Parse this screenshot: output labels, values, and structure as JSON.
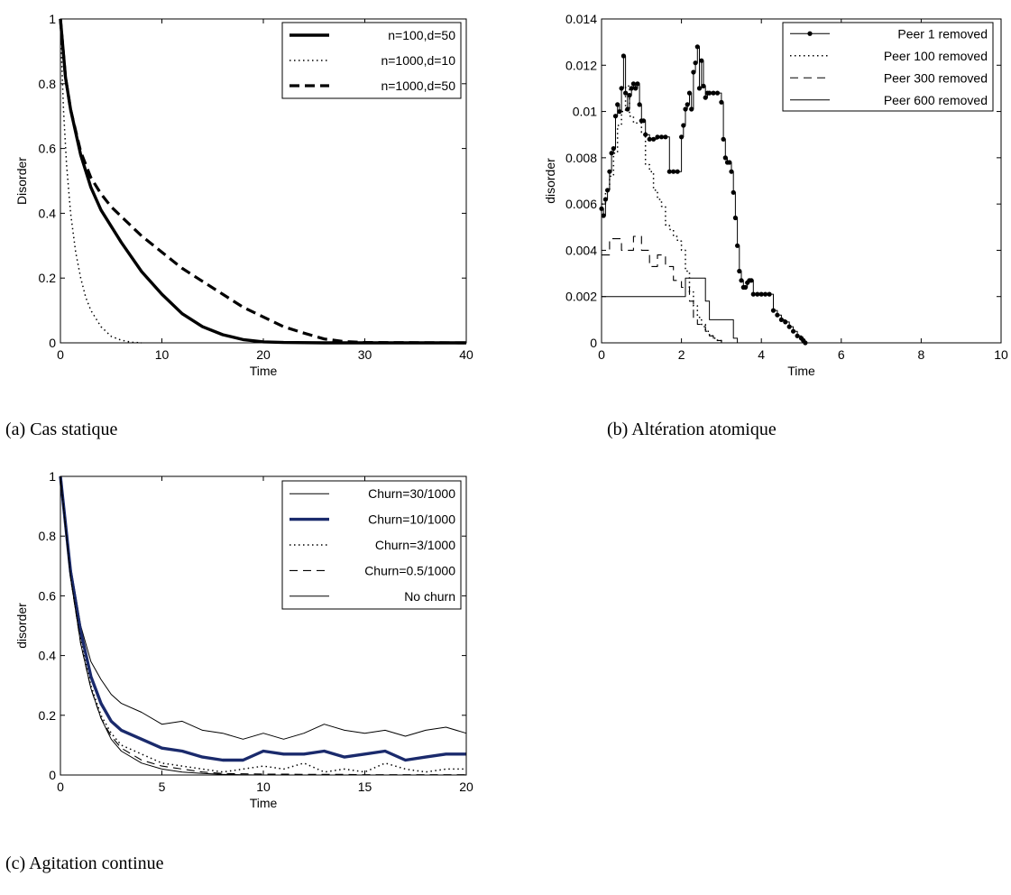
{
  "chart_data": [
    {
      "type": "line",
      "caption": "(a) Cas statique",
      "xlabel": "Time",
      "ylabel": "Disorder",
      "xlim": [
        0,
        40
      ],
      "ylim": [
        0,
        1
      ],
      "xticks": [
        "0",
        "10",
        "20",
        "30",
        "40"
      ],
      "yticks": [
        "0",
        "0.2",
        "0.4",
        "0.6",
        "0.8",
        "1"
      ],
      "grid": false,
      "legend_position": "top-right",
      "series": [
        {
          "name": "n=100,d=50",
          "color": "#000000",
          "style": "solid-thick",
          "x": [
            0,
            0.5,
            1,
            2,
            3,
            4,
            5,
            6,
            8,
            10,
            12,
            14,
            16,
            18,
            20,
            22,
            26,
            30,
            40
          ],
          "y": [
            1.0,
            0.82,
            0.72,
            0.58,
            0.48,
            0.41,
            0.36,
            0.31,
            0.22,
            0.15,
            0.09,
            0.05,
            0.025,
            0.01,
            0.003,
            0.001,
            0,
            0,
            0
          ]
        },
        {
          "name": "n=1000,d=10",
          "color": "#000000",
          "style": "dotted",
          "x": [
            0,
            0.3,
            0.6,
            1,
            1.5,
            2,
            2.5,
            3,
            4,
            5,
            6,
            7,
            8
          ],
          "y": [
            0.98,
            0.72,
            0.55,
            0.4,
            0.28,
            0.2,
            0.14,
            0.1,
            0.05,
            0.02,
            0.008,
            0.002,
            0
          ]
        },
        {
          "name": "n=1000,d=50",
          "color": "#000000",
          "style": "dashed-thick",
          "x": [
            0,
            0.5,
            1,
            2,
            3,
            4,
            5,
            6,
            8,
            10,
            12,
            14,
            16,
            18,
            20,
            22,
            24,
            26,
            28,
            30,
            40
          ],
          "y": [
            1.0,
            0.82,
            0.72,
            0.59,
            0.51,
            0.46,
            0.42,
            0.39,
            0.33,
            0.28,
            0.23,
            0.19,
            0.15,
            0.11,
            0.08,
            0.05,
            0.03,
            0.012,
            0.004,
            0.001,
            0
          ]
        }
      ]
    },
    {
      "type": "line",
      "caption": "(b) Altération atomique",
      "xlabel": "Time",
      "ylabel": "disorder",
      "xlim": [
        0,
        10
      ],
      "ylim": [
        0,
        0.014
      ],
      "xticks": [
        "0",
        "2",
        "4",
        "6",
        "8",
        "10"
      ],
      "yticks": [
        "0",
        "0.002",
        "0.004",
        "0.006",
        "0.008",
        "0.01",
        "0.012",
        "0.014"
      ],
      "grid": false,
      "legend_position": "top-right",
      "series": [
        {
          "name": "Peer 1 removed",
          "color": "#000000",
          "style": "solid-dots",
          "x": [
            0,
            0.05,
            0.1,
            0.15,
            0.2,
            0.25,
            0.3,
            0.35,
            0.4,
            0.45,
            0.5,
            0.55,
            0.6,
            0.65,
            0.7,
            0.75,
            0.8,
            0.85,
            0.9,
            0.95,
            1.0,
            1.05,
            1.1,
            1.2,
            1.3,
            1.4,
            1.5,
            1.6,
            1.7,
            1.8,
            1.9,
            2.0,
            2.05,
            2.1,
            2.15,
            2.2,
            2.25,
            2.3,
            2.35,
            2.4,
            2.45,
            2.5,
            2.55,
            2.6,
            2.65,
            2.7,
            2.8,
            2.9,
            3.0,
            3.05,
            3.1,
            3.15,
            3.2,
            3.25,
            3.3,
            3.35,
            3.4,
            3.45,
            3.5,
            3.55,
            3.6,
            3.65,
            3.7,
            3.75,
            3.8,
            3.9,
            4.0,
            4.1,
            4.2,
            4.3,
            4.4,
            4.5,
            4.6,
            4.7,
            4.8,
            4.9,
            5.0,
            5.05,
            5.1,
            6,
            7,
            8,
            9,
            10
          ],
          "y": [
            0.0058,
            0.0055,
            0.0062,
            0.0066,
            0.0074,
            0.0082,
            0.0084,
            0.0098,
            0.0103,
            0.01,
            0.011,
            0.0124,
            0.0108,
            0.0101,
            0.0107,
            0.011,
            0.0112,
            0.011,
            0.0112,
            0.0103,
            0.0096,
            0.0096,
            0.009,
            0.0088,
            0.0088,
            0.0089,
            0.0089,
            0.0089,
            0.0074,
            0.0074,
            0.0074,
            0.0089,
            0.0094,
            0.0101,
            0.0103,
            0.0108,
            0.0101,
            0.0117,
            0.0121,
            0.0128,
            0.011,
            0.0122,
            0.0111,
            0.0106,
            0.0108,
            0.0108,
            0.0108,
            0.0108,
            0.0104,
            0.0088,
            0.008,
            0.0078,
            0.0078,
            0.0074,
            0.0065,
            0.0054,
            0.0042,
            0.0031,
            0.0027,
            0.0024,
            0.0024,
            0.0026,
            0.0027,
            0.0027,
            0.0021,
            0.0021,
            0.0021,
            0.0021,
            0.0021,
            0.0014,
            0.0012,
            0.001,
            0.0009,
            0.0007,
            0.0005,
            0.0003,
            0.0002,
            0.0001,
            0,
            0,
            0,
            0,
            0,
            0
          ]
        },
        {
          "name": "Peer 100 removed",
          "color": "#000000",
          "style": "dotted",
          "x": [
            0,
            0.1,
            0.2,
            0.3,
            0.4,
            0.5,
            0.6,
            0.7,
            0.8,
            0.9,
            1.0,
            1.1,
            1.2,
            1.3,
            1.4,
            1.5,
            1.6,
            1.7,
            1.8,
            1.9,
            2.0,
            2.1,
            2.2,
            2.3,
            2.4,
            2.5,
            2.6,
            2.7,
            2.8,
            2.9,
            3.0
          ],
          "y": [
            0.006,
            0.0066,
            0.0072,
            0.0082,
            0.0094,
            0.01,
            0.0111,
            0.0098,
            0.0095,
            0.0095,
            0.0091,
            0.0077,
            0.0074,
            0.0066,
            0.0062,
            0.0059,
            0.0051,
            0.0049,
            0.0046,
            0.0044,
            0.004,
            0.0031,
            0.0022,
            0.0016,
            0.0011,
            0.0008,
            0.0005,
            0.0003,
            0.0002,
            0.0001,
            0
          ]
        },
        {
          "name": "Peer 300 removed",
          "color": "#000000",
          "style": "dashed",
          "x": [
            0,
            0.2,
            0.5,
            0.8,
            1.0,
            1.2,
            1.4,
            1.6,
            1.8,
            2.0,
            2.2,
            2.3,
            2.4,
            2.5,
            2.6,
            2.7,
            2.8,
            3.0
          ],
          "y": [
            0.0038,
            0.0045,
            0.004,
            0.0046,
            0.004,
            0.0033,
            0.0038,
            0.0033,
            0.0027,
            0.0024,
            0.0018,
            0.001,
            0.0008,
            0.0007,
            0.0005,
            0.0003,
            0.0001,
            0
          ]
        },
        {
          "name": "Peer 600 removed",
          "color": "#000000",
          "style": "solid-thin",
          "x": [
            0,
            0.5,
            1.0,
            1.5,
            2.0,
            2.1,
            2.5,
            2.6,
            2.7,
            3.0,
            3.2,
            3.3,
            3.4
          ],
          "y": [
            0.002,
            0.002,
            0.002,
            0.002,
            0.002,
            0.0028,
            0.0028,
            0.0018,
            0.001,
            0.001,
            0.001,
            0.0002,
            0
          ]
        }
      ]
    },
    {
      "type": "line",
      "caption": "(c) Agitation continue",
      "xlabel": "Time",
      "ylabel": "disorder",
      "xlim": [
        0,
        20
      ],
      "ylim": [
        0,
        1
      ],
      "xticks": [
        "0",
        "5",
        "10",
        "15",
        "20"
      ],
      "yticks": [
        "0",
        "0.2",
        "0.4",
        "0.6",
        "0.8",
        "1"
      ],
      "grid": false,
      "legend_position": "top-right",
      "series": [
        {
          "name": "Churn=30/1000",
          "color": "#000000",
          "style": "solid-thin",
          "x": [
            0,
            0.5,
            1,
            1.5,
            2,
            2.5,
            3,
            4,
            5,
            6,
            7,
            8,
            9,
            10,
            11,
            12,
            13,
            14,
            15,
            16,
            17,
            18,
            19,
            20
          ],
          "y": [
            1.0,
            0.7,
            0.5,
            0.38,
            0.32,
            0.27,
            0.24,
            0.21,
            0.17,
            0.18,
            0.15,
            0.14,
            0.12,
            0.14,
            0.12,
            0.14,
            0.17,
            0.15,
            0.14,
            0.15,
            0.13,
            0.15,
            0.16,
            0.14
          ]
        },
        {
          "name": "Churn=10/1000",
          "color": "#1a2a6c",
          "style": "solid-thick",
          "x": [
            0,
            0.5,
            1,
            1.5,
            2,
            2.5,
            3,
            4,
            5,
            6,
            7,
            8,
            9,
            10,
            11,
            12,
            13,
            14,
            15,
            16,
            17,
            18,
            19,
            20
          ],
          "y": [
            1.0,
            0.68,
            0.48,
            0.33,
            0.24,
            0.18,
            0.15,
            0.12,
            0.09,
            0.08,
            0.06,
            0.05,
            0.05,
            0.08,
            0.07,
            0.07,
            0.08,
            0.06,
            0.07,
            0.08,
            0.05,
            0.06,
            0.07,
            0.07
          ]
        },
        {
          "name": "Churn=3/1000",
          "color": "#000000",
          "style": "dotted",
          "x": [
            0,
            0.5,
            1,
            1.5,
            2,
            2.5,
            3,
            4,
            5,
            6,
            7,
            8,
            9,
            10,
            11,
            12,
            13,
            14,
            15,
            16,
            17,
            18,
            19,
            20
          ],
          "y": [
            1.0,
            0.66,
            0.45,
            0.3,
            0.2,
            0.14,
            0.1,
            0.07,
            0.04,
            0.03,
            0.02,
            0.01,
            0.02,
            0.03,
            0.02,
            0.04,
            0.01,
            0.02,
            0.01,
            0.04,
            0.02,
            0.01,
            0.02,
            0.02
          ]
        },
        {
          "name": "Churn=0.5/1000",
          "color": "#000000",
          "style": "dashed",
          "x": [
            0,
            0.5,
            1,
            1.5,
            2,
            2.5,
            3,
            4,
            5,
            6,
            7,
            8,
            9,
            10,
            11,
            12,
            13,
            14,
            15,
            16,
            17,
            18,
            19,
            20
          ],
          "y": [
            1.0,
            0.66,
            0.44,
            0.29,
            0.19,
            0.13,
            0.09,
            0.05,
            0.03,
            0.02,
            0.01,
            0.005,
            0.004,
            0.003,
            0.003,
            0.002,
            0.002,
            0.002,
            0.001,
            0.001,
            0.001,
            0.001,
            0.001,
            0.001
          ]
        },
        {
          "name": "No churn",
          "color": "#000000",
          "style": "solid-thin",
          "x": [
            0,
            0.5,
            1,
            1.5,
            2,
            2.5,
            3,
            4,
            5,
            6,
            7,
            8,
            9,
            10,
            12,
            14,
            16,
            18,
            20
          ],
          "y": [
            1.0,
            0.66,
            0.44,
            0.29,
            0.19,
            0.12,
            0.08,
            0.04,
            0.02,
            0.01,
            0.005,
            0.002,
            0.001,
            0,
            0,
            0,
            0,
            0,
            0
          ]
        }
      ]
    }
  ]
}
